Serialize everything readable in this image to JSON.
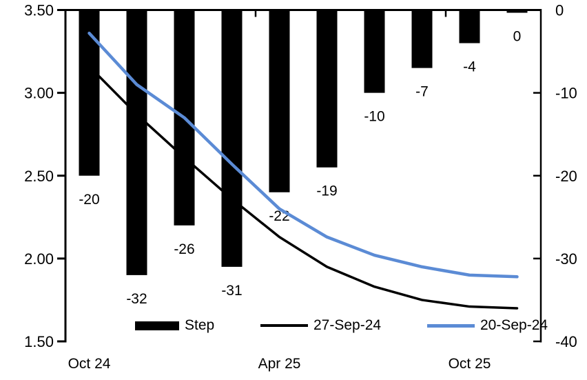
{
  "chart": {
    "chart_data": {
      "type": "combo-bar-line",
      "num_slots": 10,
      "x_tick_labels": [
        {
          "slot": 0,
          "label": "Oct 24"
        },
        {
          "slot": 4,
          "label": "Apr 25"
        },
        {
          "slot": 8,
          "label": "Oct 25"
        }
      ],
      "left_axis": {
        "min": 1.5,
        "max": 3.5,
        "tick_step": 0.5,
        "tick_labels": [
          "3.50",
          "3.00",
          "2.50",
          "2.00",
          "1.50"
        ]
      },
      "right_axis": {
        "min": -40,
        "max": 0,
        "tick_step": 10,
        "tick_labels": [
          "0",
          "-10",
          "-20",
          "-30",
          "-40"
        ]
      },
      "bar_series": {
        "name": "Step",
        "axis": "right",
        "values": [
          -20,
          -32,
          -26,
          -31,
          -22,
          -19,
          -10,
          -7,
          -4,
          0
        ],
        "data_labels": [
          "-20",
          "-32",
          "-26",
          "-31",
          "-22",
          "-19",
          "-10",
          "-7",
          "-4",
          "0"
        ]
      },
      "line_series": [
        {
          "name": "27-Sep-24",
          "axis": "left",
          "values": [
            3.16,
            2.87,
            2.61,
            2.36,
            2.13,
            1.95,
            1.83,
            1.75,
            1.71,
            1.7
          ]
        },
        {
          "name": "20-Sep-24",
          "axis": "left",
          "values": [
            3.36,
            3.05,
            2.85,
            2.57,
            2.3,
            2.13,
            2.02,
            1.95,
            1.9,
            1.89
          ]
        }
      ],
      "legend_position": "bottom",
      "grid": false
    },
    "colors": {
      "bar": "#000000",
      "line_27sep": "#000000",
      "line_20sep": "#5b8bd5",
      "axis": "#000000",
      "text": "#000000",
      "background": "#ffffff"
    },
    "legend": [
      {
        "label": "Step",
        "swatch": "bar-swatch"
      },
      {
        "label": "27-Sep-24",
        "swatch": "black-line-swatch"
      },
      {
        "label": "20-Sep-24",
        "swatch": "blue-line-swatch"
      }
    ]
  }
}
